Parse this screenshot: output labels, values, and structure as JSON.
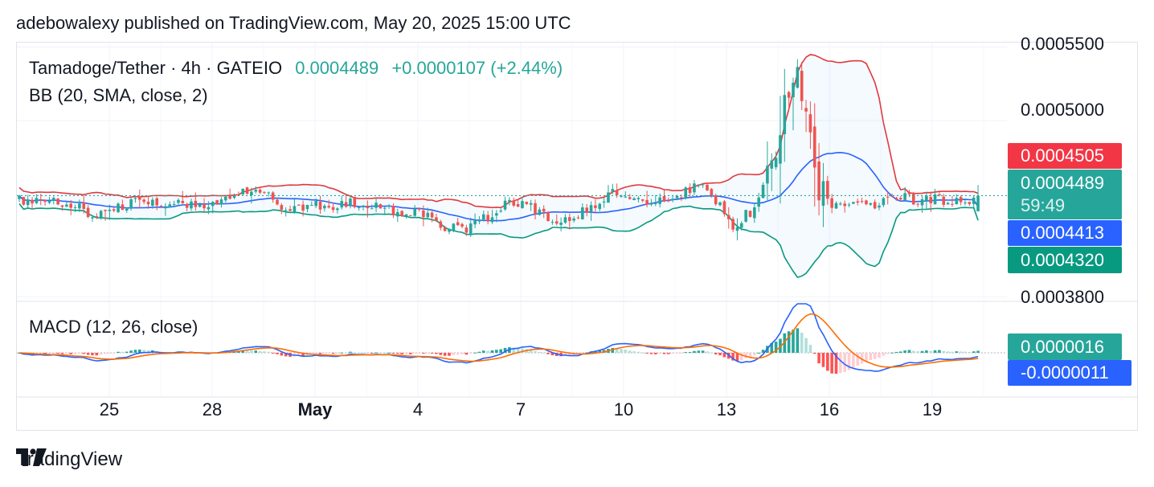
{
  "header": {
    "published": "adebowalexy published on TradingView.com, May 20, 2025 15:00 UTC"
  },
  "legend": {
    "symbol": "Tamadoge/Tether · 4h · GATEIO",
    "price": "0.0004489",
    "change": "+0.0000107 (+2.44%)",
    "bb": "BB (20, SMA, close, 2)",
    "macd": "MACD (12, 26, close)"
  },
  "price_axis": {
    "top": "0.0005500",
    "mid": "0.0005000",
    "bottom": "0.0003800"
  },
  "badges": {
    "bb_upper": "0.0004505",
    "last_price": "0.0004489",
    "countdown": "59:49",
    "bb_basis": "0.0004413",
    "bb_lower": "0.0004320",
    "macd_hist": "0.0000016",
    "macd_line": "-0.0000011"
  },
  "colors": {
    "up": "#26a69a",
    "down": "#ef5350",
    "bb_upper": "#e0393e",
    "bb_basis": "#2962ff",
    "bb_lower": "#089981",
    "bb_fill": "#2196f3",
    "macd_line": "#2962ff",
    "signal_line": "#ff6d00",
    "hist_up_strong": "#26a69a",
    "hist_up_weak": "#b2dfdb",
    "hist_down_strong": "#ff5252",
    "hist_down_weak": "#ffcdd2"
  },
  "brand": {
    "name": "TradingView",
    "icon": "tradingview-logo-icon"
  },
  "chart_data": [
    {
      "type": "candlestick",
      "title": "Tamadoge/Tether · 4h · GATEIO",
      "x_ticks": [
        "25",
        "28",
        "May",
        "4",
        "7",
        "10",
        "13",
        "16",
        "19"
      ],
      "y_ticks": [
        0.00038,
        0.0005,
        0.00055
      ],
      "ylim": [
        0.000378,
        0.000552
      ],
      "last_price": 0.0004489,
      "indicators": {
        "bb_upper_last": 0.0004505,
        "bb_basis_last": 0.0004413,
        "bb_lower_last": 0.000432
      },
      "grid": true
    },
    {
      "type": "line",
      "title": "MACD (12, 26, close)",
      "series": [
        {
          "name": "Histogram",
          "last": 1.6e-06
        },
        {
          "name": "MACD",
          "last": -1.1e-06
        }
      ],
      "grid": true
    }
  ]
}
